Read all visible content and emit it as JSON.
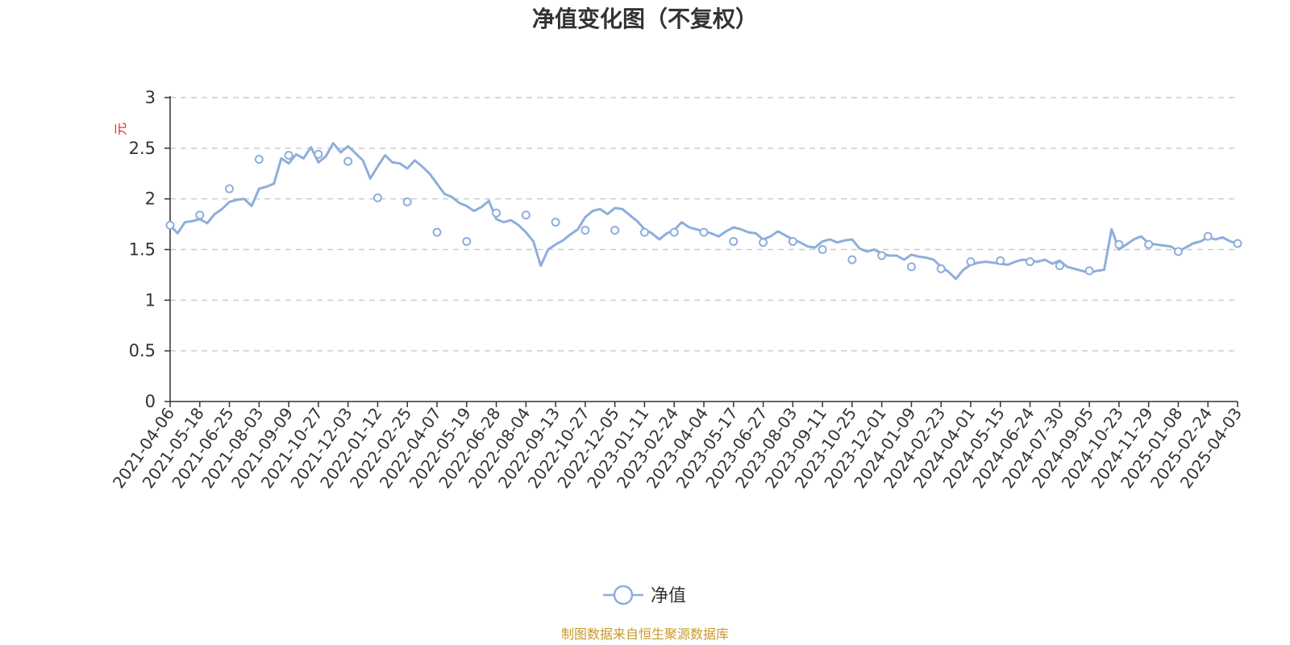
{
  "chart_data": {
    "type": "line",
    "title": "净值变化图（不复权）",
    "ylabel": "元",
    "ylim": [
      0,
      3
    ],
    "y_ticks": [
      "0",
      "0.5",
      "1",
      "1.5",
      "2",
      "2.5",
      "3"
    ],
    "x_tick_labels": [
      "2021-04-06",
      "2021-05-18",
      "2021-06-25",
      "2021-08-03",
      "2021-09-09",
      "2021-10-27",
      "2021-12-03",
      "2022-01-12",
      "2022-02-25",
      "2022-04-07",
      "2022-05-19",
      "2022-06-28",
      "2022-08-04",
      "2022-09-13",
      "2022-10-27",
      "2022-12-05",
      "2023-01-11",
      "2023-02-24",
      "2023-04-04",
      "2023-05-17",
      "2023-06-27",
      "2023-08-03",
      "2023-09-11",
      "2023-10-25",
      "2023-12-01",
      "2024-01-09",
      "2024-02-23",
      "2024-04-01",
      "2024-05-15",
      "2024-06-24",
      "2024-07-30",
      "2024-09-05",
      "2024-10-23",
      "2024-11-29",
      "2025-01-08",
      "2025-02-24",
      "2025-04-03"
    ],
    "grid": "horizontal-dashed",
    "legend_position": "bottom-center",
    "series": [
      {
        "name": "净值",
        "color": "#8eaedc",
        "values": [
          1.74,
          1.66,
          1.77,
          1.78,
          1.8,
          1.76,
          1.85,
          1.9,
          1.97,
          1.99,
          2.0,
          1.93,
          2.1,
          2.12,
          2.15,
          2.4,
          2.35,
          2.44,
          2.4,
          2.51,
          2.36,
          2.42,
          2.55,
          2.46,
          2.52,
          2.45,
          2.38,
          2.2,
          2.32,
          2.43,
          2.36,
          2.35,
          2.3,
          2.38,
          2.32,
          2.25,
          2.15,
          2.05,
          2.02,
          1.96,
          1.93,
          1.88,
          1.92,
          1.98,
          1.8,
          1.77,
          1.79,
          1.74,
          1.67,
          1.58,
          1.34,
          1.5,
          1.55,
          1.59,
          1.65,
          1.7,
          1.82,
          1.88,
          1.9,
          1.85,
          1.91,
          1.9,
          1.84,
          1.78,
          1.7,
          1.66,
          1.6,
          1.66,
          1.69,
          1.77,
          1.72,
          1.7,
          1.68,
          1.66,
          1.63,
          1.68,
          1.72,
          1.7,
          1.67,
          1.66,
          1.6,
          1.63,
          1.68,
          1.64,
          1.6,
          1.57,
          1.53,
          1.52,
          1.58,
          1.6,
          1.57,
          1.59,
          1.6,
          1.51,
          1.48,
          1.5,
          1.46,
          1.44,
          1.44,
          1.4,
          1.45,
          1.43,
          1.42,
          1.4,
          1.33,
          1.28,
          1.21,
          1.3,
          1.35,
          1.37,
          1.38,
          1.37,
          1.36,
          1.35,
          1.38,
          1.4,
          1.39,
          1.38,
          1.4,
          1.36,
          1.39,
          1.33,
          1.31,
          1.29,
          1.27,
          1.29,
          1.3,
          1.7,
          1.5,
          1.55,
          1.6,
          1.63,
          1.56,
          1.55,
          1.54,
          1.53,
          1.48,
          1.52,
          1.56,
          1.58,
          1.62,
          1.6,
          1.62,
          1.58,
          1.56
        ]
      }
    ],
    "markers": [
      {
        "date": "2021-04-06",
        "value": 1.74
      },
      {
        "date": "2021-05-18",
        "value": 1.84
      },
      {
        "date": "2021-06-25",
        "value": 2.1
      },
      {
        "date": "2021-08-03",
        "value": 2.39
      },
      {
        "date": "2021-09-09",
        "value": 2.43
      },
      {
        "date": "2021-10-27",
        "value": 2.44
      },
      {
        "date": "2021-12-03",
        "value": 2.37
      },
      {
        "date": "2022-01-12",
        "value": 2.01
      },
      {
        "date": "2022-02-25",
        "value": 1.97
      },
      {
        "date": "2022-04-07",
        "value": 1.67
      },
      {
        "date": "2022-05-19",
        "value": 1.58
      },
      {
        "date": "2022-06-28",
        "value": 1.86
      },
      {
        "date": "2022-08-04",
        "value": 1.84
      },
      {
        "date": "2022-09-13",
        "value": 1.77
      },
      {
        "date": "2022-10-27",
        "value": 1.69
      },
      {
        "date": "2022-12-05",
        "value": 1.69
      },
      {
        "date": "2023-01-11",
        "value": 1.67
      },
      {
        "date": "2023-02-24",
        "value": 1.67
      },
      {
        "date": "2023-04-04",
        "value": 1.67
      },
      {
        "date": "2023-05-17",
        "value": 1.58
      },
      {
        "date": "2023-06-27",
        "value": 1.57
      },
      {
        "date": "2023-08-03",
        "value": 1.58
      },
      {
        "date": "2023-09-11",
        "value": 1.5
      },
      {
        "date": "2023-10-25",
        "value": 1.4
      },
      {
        "date": "2023-12-01",
        "value": 1.44
      },
      {
        "date": "2024-01-09",
        "value": 1.33
      },
      {
        "date": "2024-02-23",
        "value": 1.31
      },
      {
        "date": "2024-04-01",
        "value": 1.38
      },
      {
        "date": "2024-05-15",
        "value": 1.39
      },
      {
        "date": "2024-06-24",
        "value": 1.38
      },
      {
        "date": "2024-07-30",
        "value": 1.34
      },
      {
        "date": "2024-09-05",
        "value": 1.29
      },
      {
        "date": "2024-10-23",
        "value": 1.55
      },
      {
        "date": "2024-11-29",
        "value": 1.55
      },
      {
        "date": "2025-01-08",
        "value": 1.48
      },
      {
        "date": "2025-02-24",
        "value": 1.63
      },
      {
        "date": "2025-04-03",
        "value": 1.56
      }
    ]
  },
  "legend": {
    "label": "净值"
  },
  "footer": {
    "source": "制图数据来自恒生聚源数据库"
  },
  "colors": {
    "line": "#8eaedc",
    "grid": "#cccccc",
    "unit": "#e0281e",
    "source": "#c89a2e"
  }
}
